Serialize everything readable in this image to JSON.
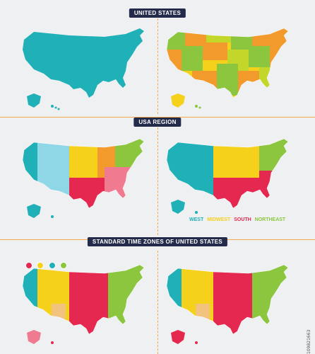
{
  "sections": {
    "united_states": "UNITED STATES",
    "usa_region": "USA REGION",
    "time_zones": "STANDARD TIME ZONES OF UNITED STATES"
  },
  "legend": {
    "west": "WEST",
    "midwest": "MIDWEST",
    "south": "SOUTH",
    "northeast": "NORTHEAST"
  },
  "colors": {
    "teal": "#1fb0b8",
    "lightblue": "#8fd6e6",
    "yellow": "#f5d11c",
    "orange": "#f39a2c",
    "red": "#e5284f",
    "green": "#8cc63e",
    "lime": "#c3d72b",
    "tan": "#f2c27f",
    "lightred": "#f07a8f",
    "band": "#232a4a",
    "line": "#f2a94a"
  },
  "watermark_id": "109821663"
}
